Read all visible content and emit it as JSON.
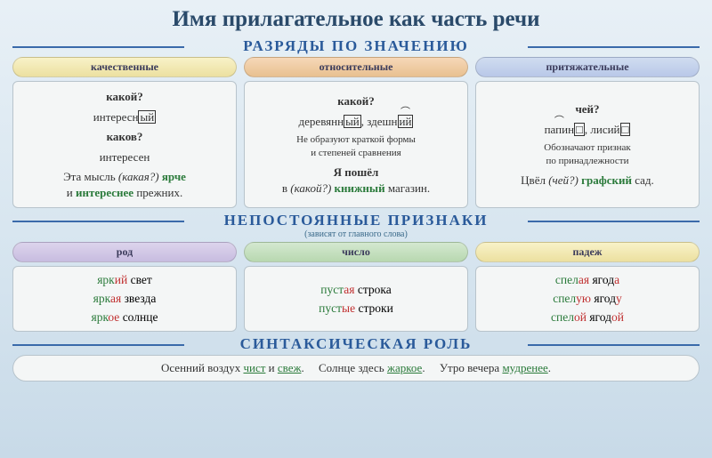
{
  "title": "Имя прилагательное как часть речи",
  "section1": {
    "heading": "РАЗРЯДЫ ПО ЗНАЧЕНИЮ",
    "cols": {
      "qual": {
        "pill": "качественные",
        "q1": "какой?",
        "ex1_a": "интересн",
        "ex1_b": "ый",
        "q2": "каков?",
        "ex2": "интересен",
        "sent_a": "Эта мысль ",
        "sent_b": "(какая?)",
        "sent_c": " ярче",
        "sent_d": "и ",
        "sent_e": "интереснее",
        "sent_f": " прежних."
      },
      "rel": {
        "pill": "относительные",
        "q1": "какой?",
        "ex1_a": "деревянн",
        "ex1_b": "ый",
        "ex1_c": ", здешн",
        "ex1_d": "ий",
        "note1": "Не образуют краткой формы",
        "note2": "и степеней сравнения",
        "sent_a": "Я пошёл",
        "sent_b": "в ",
        "sent_c": "(какой?)",
        "sent_d": " книжный",
        "sent_e": " магазин."
      },
      "poss": {
        "pill": "притяжательные",
        "q1": "чей?",
        "ex1_a": "папин",
        "ex1_b": "□",
        "ex1_c": ", лисий",
        "ex1_d": "□",
        "note1": "Обозначают признак",
        "note2": "по принадлежности",
        "sent_a": "Цвёл ",
        "sent_b": "(чей?)",
        "sent_c": " графский",
        "sent_d": " сад."
      }
    }
  },
  "section2": {
    "heading": "НЕПОСТОЯННЫЕ ПРИЗНАКИ",
    "sub": "(зависят от главного слова)",
    "cols": {
      "gender": {
        "pill": "род",
        "r1_a": "ярк",
        "r1_b": "ий",
        "r1_c": " свет",
        "r2_a": "ярк",
        "r2_b": "ая",
        "r2_c": " звезда",
        "r3_a": "ярк",
        "r3_b": "ое",
        "r3_c": " солнце"
      },
      "number": {
        "pill": "число",
        "r1_a": "пуст",
        "r1_b": "ая",
        "r1_c": " строка",
        "r2_a": "пуст",
        "r2_b": "ые",
        "r2_c": " строки"
      },
      "case": {
        "pill": "падеж",
        "r1_a": "спел",
        "r1_b": "ая",
        "r1_c": " ягод",
        "r1_d": "а",
        "r2_a": "спел",
        "r2_b": "ую",
        "r2_c": " ягод",
        "r2_d": "у",
        "r3_a": "спел",
        "r3_b": "ой",
        "r3_c": " ягод",
        "r3_d": "ой"
      }
    }
  },
  "section3": {
    "heading": "СИНТАКСИЧЕСКАЯ РОЛЬ",
    "s1_a": "Осенний воздух ",
    "s1_b": "чист",
    "s1_c": " и ",
    "s1_d": "свеж",
    "s1_e": ".",
    "s2_a": "Солнце здесь ",
    "s2_b": "жаркое",
    "s2_c": ".",
    "s3_a": "Утро вечера ",
    "s3_b": "мудренее",
    "s3_c": "."
  },
  "colors": {
    "bg_top": "#e8f0f6",
    "bg_bottom": "#c8dae8",
    "title": "#2a4a6a",
    "heading": "#2a5a9a",
    "green": "#2a7a3a",
    "red": "#c03030",
    "blue": "#2a5a9a",
    "card_bg": "#f4f6f6",
    "card_border": "#b8c4cc"
  }
}
